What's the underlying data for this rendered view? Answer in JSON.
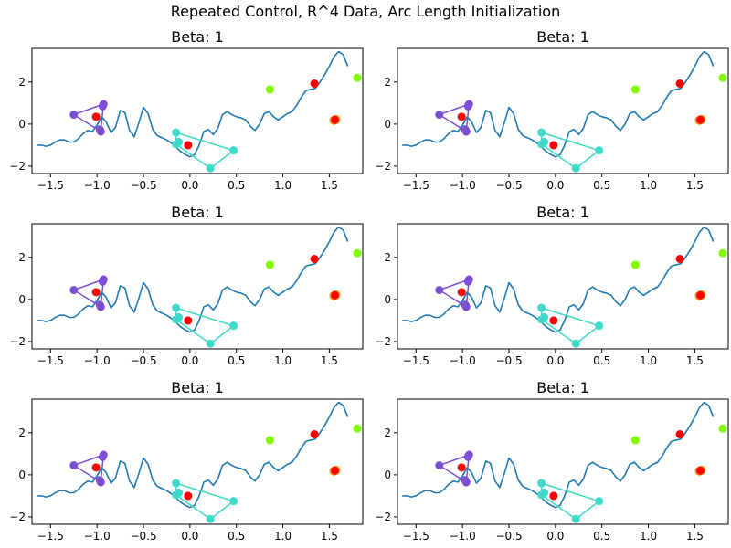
{
  "figure": {
    "suptitle": "Repeated Control, R^4 Data, Arc Length Initialization"
  },
  "chart_data": {
    "type": "line",
    "panel_count": 6,
    "panel_title": "Beta: 1",
    "xlim": [
      -1.7,
      1.86
    ],
    "ylim": [
      -2.35,
      3.6
    ],
    "x_ticks": [
      -1.5,
      -1.0,
      -0.5,
      0.0,
      0.5,
      1.0,
      1.5
    ],
    "x_tick_labels": [
      "−1.5",
      "−1.0",
      "−0.5",
      "0.0",
      "0.5",
      "1.0",
      "1.5"
    ],
    "y_ticks": [
      -2,
      0,
      2
    ],
    "y_tick_labels": [
      "−2",
      "0",
      "2"
    ],
    "curve": {
      "color": "#1f77b4",
      "x": [
        -1.65,
        -1.6,
        -1.55,
        -1.5,
        -1.45,
        -1.4,
        -1.35,
        -1.3,
        -1.25,
        -1.2,
        -1.15,
        -1.1,
        -1.05,
        -1.0,
        -0.95,
        -0.9,
        -0.85,
        -0.8,
        -0.75,
        -0.7,
        -0.65,
        -0.6,
        -0.55,
        -0.5,
        -0.45,
        -0.4,
        -0.35,
        -0.3,
        -0.25,
        -0.2,
        -0.15,
        -0.1,
        -0.05,
        0.0,
        0.05,
        0.1,
        0.15,
        0.2,
        0.25,
        0.3,
        0.35,
        0.4,
        0.45,
        0.5,
        0.55,
        0.6,
        0.65,
        0.7,
        0.75,
        0.8,
        0.85,
        0.9,
        0.95,
        1.0,
        1.05,
        1.1,
        1.15,
        1.2,
        1.25,
        1.3,
        1.35,
        1.4,
        1.45,
        1.5,
        1.55,
        1.6,
        1.65,
        1.7
      ],
      "y": [
        -1.0,
        -1.0,
        -1.05,
        -1.0,
        -0.85,
        -0.75,
        -0.75,
        -0.85,
        -0.85,
        -0.7,
        -0.45,
        -0.3,
        -0.35,
        -0.05,
        0.35,
        0.1,
        -0.4,
        -0.15,
        0.65,
        0.55,
        -0.3,
        -0.6,
        0.05,
        0.8,
        0.5,
        -0.25,
        -0.55,
        -0.65,
        -0.75,
        -0.9,
        -1.1,
        -1.3,
        -1.45,
        -1.55,
        -1.45,
        -1.0,
        -0.35,
        -0.25,
        -0.5,
        -0.2,
        0.45,
        0.6,
        0.45,
        0.35,
        0.3,
        0.2,
        -0.1,
        -0.3,
        0.0,
        0.5,
        0.6,
        0.35,
        0.2,
        0.35,
        0.5,
        0.6,
        0.9,
        1.3,
        1.6,
        1.65,
        1.7,
        2.0,
        2.35,
        2.75,
        3.2,
        3.45,
        3.3,
        2.75
      ]
    },
    "purple_triangle": {
      "color": "#7b4fd6",
      "x": [
        -1.25,
        -0.93,
        -0.96,
        -1.25
      ],
      "y": [
        0.45,
        0.95,
        -0.35,
        0.45
      ],
      "points": {
        "x": [
          -1.25,
          -0.93,
          -0.96,
          -0.97,
          -0.94
        ],
        "y": [
          0.45,
          0.95,
          -0.35,
          -0.25,
          0.85
        ]
      }
    },
    "cyan_quad": {
      "color": "#3fd9c8",
      "x": [
        -0.15,
        0.47,
        0.22,
        -0.15,
        -0.15
      ],
      "y": [
        -0.4,
        -1.25,
        -2.1,
        -0.95,
        -0.4
      ],
      "points": {
        "x": [
          -0.15,
          0.47,
          0.22,
          -0.15,
          -0.12
        ],
        "y": [
          -0.4,
          -1.25,
          -2.1,
          -0.95,
          -0.85
        ]
      }
    },
    "green_points": {
      "color": "#7fff00",
      "x": [
        0.86,
        1.8
      ],
      "y": [
        1.65,
        2.2
      ]
    },
    "orange_points": {
      "color": "#ff9a00",
      "x": [
        1.55,
        1.57
      ],
      "y": [
        0.18,
        0.22
      ]
    },
    "red_points": {
      "color": "#ff0000",
      "x": [
        -1.01,
        -0.02,
        1.34,
        1.56
      ],
      "y": [
        0.35,
        -1.0,
        1.93,
        0.2
      ]
    }
  }
}
